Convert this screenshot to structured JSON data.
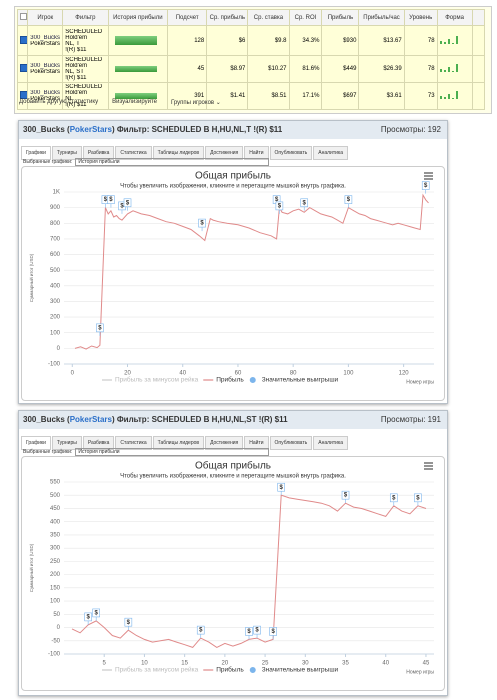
{
  "table": {
    "headers": [
      "Игрок",
      "Фильтр",
      "История прибыли",
      "Подсчет",
      "Ср. прибыль",
      "Ср. ставка",
      "Ср. ROI",
      "Прибыль",
      "Прибыль/час",
      "Уровень",
      "Форма"
    ],
    "rows": [
      {
        "player": "300_Bucks",
        "site": "PokerStars",
        "filter": [
          "SCHEDULED",
          "Hold'em",
          "NL, T",
          "!(R) $11"
        ],
        "cells": [
          128,
          "$6",
          "$9.8",
          "34.3%",
          "$930",
          "$13.67",
          78
        ]
      },
      {
        "player": "300_Bucks",
        "site": "PokerStars",
        "filter": [
          "SCHEDULED",
          "Hold'em",
          "NL, ST",
          "!(R) $11"
        ],
        "cells": [
          45,
          "$8.97",
          "$10.27",
          "81.6%",
          "$449",
          "$26.39",
          78
        ]
      },
      {
        "player": "300_Bucks",
        "site": "PokerStars",
        "filter": [
          "SCHEDULED",
          "Hold'em",
          "NL",
          "!(R) $11"
        ],
        "cells": [
          391,
          "$1.41",
          "$8.51",
          "17.1%",
          "$697",
          "$3.61",
          73
        ]
      }
    ],
    "footer": [
      "Добавить другую статистику",
      "Визуализируйте",
      "Группы игроков ⌄"
    ]
  },
  "panels": [
    {
      "title": [
        "300_Bucks (",
        "PokerStars",
        ") Фильтр: SCHEDULED B H,HU,NL,T !(R) $11"
      ],
      "views": "Просмотры: 192",
      "tabs": [
        "Графики",
        "Турниры",
        "Разбивка",
        "Статистика",
        "Таблицы лидеров",
        "Достижения",
        "Найти",
        "Опубликовать",
        "Аналитика"
      ],
      "selected_label": "Выбранные графики:",
      "selected": "История прибыли",
      "chart_data": {
        "type": "line",
        "title": "Общая прибыль",
        "subtitle": "Чтобы увеличить изображения, кликните и перетащите мышкой внутрь графика.",
        "y_label": "Суммарный итог (USD)",
        "x_label": "Номер игры",
        "xlim": [
          -3,
          131
        ],
        "ylim": [
          -100,
          1000
        ],
        "xticks": [
          0,
          20,
          40,
          60,
          80,
          100,
          120
        ],
        "yticks": [
          -100,
          0,
          100,
          200,
          300,
          400,
          500,
          600,
          700,
          800,
          900,
          {
            "value": 1000,
            "label": "1K"
          }
        ],
        "grid": true,
        "series": [
          {
            "name": "Прибыль за минусом рейка",
            "color": "#cccccc",
            "x": [],
            "values": []
          },
          {
            "name": "Прибыль",
            "color": "#e08a8a",
            "x": [
              1,
              3,
              5,
              7,
              9,
              10,
              12,
              13,
              14,
              15,
              16,
              17,
              18,
              20,
              22,
              25,
              28,
              31,
              34,
              37,
              40,
              43,
              46,
              48,
              50,
              51,
              53,
              56,
              60,
              64,
              68,
              72,
              74,
              75,
              76,
              78,
              80,
              82,
              84,
              86,
              88,
              90,
              92,
              94,
              96,
              98,
              100,
              102,
              104,
              106,
              108,
              110,
              112,
              114,
              116,
              118,
              120,
              122,
              124,
              126,
              127,
              128,
              129
            ],
            "values": [
              0,
              10,
              -5,
              15,
              5,
              20,
              900,
              860,
              880,
              840,
              850,
              830,
              820,
              860,
              880,
              860,
              850,
              830,
              810,
              800,
              780,
              760,
              720,
              690,
              830,
              820,
              810,
              800,
              790,
              770,
              740,
              720,
              700,
              900,
              870,
              860,
              880,
              890,
              870,
              900,
              880,
              860,
              850,
              840,
              820,
              800,
              900,
              880,
              860,
              850,
              830,
              820,
              810,
              800,
              790,
              800,
              790,
              780,
              770,
              760,
              980,
              950,
              930
            ]
          },
          {
            "name": "Значительные выигрыши",
            "color": "#7cb5ec",
            "marker_label": "$",
            "x": [
              10,
              12,
              14,
              18,
              20,
              47,
              74,
              75,
              84,
              100,
              128
            ],
            "values": [
              80,
              900,
              900,
              860,
              880,
              750,
              900,
              860,
              880,
              900,
              990
            ]
          }
        ]
      }
    },
    {
      "title": [
        "300_Bucks (",
        "PokerStars",
        ") Фильтр: SCHEDULED B H,HU,NL,ST !(R) $11"
      ],
      "views": "Просмотры: 191",
      "tabs": [
        "Графики",
        "Турниры",
        "Разбивка",
        "Статистика",
        "Таблицы лидеров",
        "Достижения",
        "Найти",
        "Опубликовать",
        "Аналитика"
      ],
      "selected_label": "Выбранные графики:",
      "selected": "История прибыли",
      "chart_data": {
        "type": "line",
        "title": "Общая прибыль",
        "subtitle": "Чтобы увеличить изображения, кликните и перетащите мышкой внутрь графика.",
        "y_label": "Суммарный итог (USD)",
        "x_label": "Номер игры",
        "xlim": [
          0,
          46
        ],
        "ylim": [
          -100,
          550
        ],
        "xticks": [
          5,
          10,
          15,
          20,
          25,
          30,
          35,
          40,
          45
        ],
        "yticks": [
          -100,
          -50,
          0,
          50,
          100,
          150,
          200,
          250,
          300,
          350,
          400,
          450,
          500,
          550
        ],
        "grid": true,
        "series": [
          {
            "name": "Прибыль за минусом рейка",
            "color": "#cccccc",
            "x": [],
            "values": []
          },
          {
            "name": "Прибыль",
            "color": "#e08a8a",
            "x": [
              1,
              2,
              3,
              4,
              5,
              6,
              7,
              8,
              9,
              10,
              11,
              12,
              13,
              14,
              15,
              16,
              17,
              18,
              19,
              20,
              21,
              22,
              23,
              24,
              25,
              26,
              27,
              28,
              29,
              30,
              31,
              32,
              33,
              34,
              35,
              36,
              37,
              38,
              39,
              40,
              41,
              42,
              43,
              44,
              45
            ],
            "values": [
              -5,
              -20,
              10,
              25,
              0,
              -30,
              -40,
              -10,
              -30,
              -45,
              -55,
              -50,
              -45,
              -55,
              -65,
              -75,
              -40,
              -55,
              -75,
              -60,
              -70,
              -60,
              -45,
              -40,
              -55,
              -45,
              500,
              490,
              485,
              480,
              475,
              470,
              460,
              440,
              470,
              455,
              450,
              440,
              430,
              420,
              460,
              440,
              430,
              460,
              450
            ]
          },
          {
            "name": "Значительные выигрыши",
            "color": "#7cb5ec",
            "marker_label": "$",
            "x": [
              3,
              4,
              8,
              17,
              23,
              24,
              26,
              27,
              35,
              41,
              44
            ],
            "values": [
              10,
              25,
              -10,
              -40,
              -45,
              -40,
              -45,
              500,
              470,
              460,
              460
            ]
          }
        ]
      }
    }
  ]
}
